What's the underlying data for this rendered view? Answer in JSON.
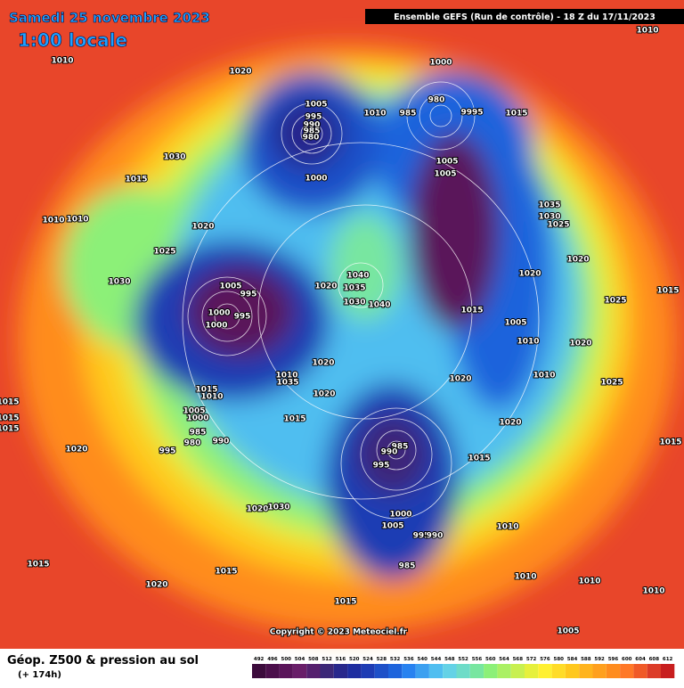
{
  "header": {
    "date": "Samedi 25 novembre 2023",
    "time": "1:00 locale",
    "run": "Ensemble GEFS  (Run de contrôle)  -  18 Z du 17/11/2023"
  },
  "map": {
    "pressure_labels": [
      1010,
      1020,
      1000,
      1010,
      1005,
      995,
      990,
      985,
      980,
      1010,
      985,
      980,
      9995,
      1015,
      1030,
      1015,
      1000,
      1005,
      1005,
      1035,
      1030,
      1025,
      1010,
      1010,
      1020,
      1025,
      1030,
      1040,
      1035,
      1020,
      1030,
      1040,
      1005,
      995,
      1000,
      995,
      1000,
      1015,
      1005,
      1020,
      1020,
      1015,
      1025,
      1010,
      1020,
      1020,
      1010,
      1035,
      1020,
      1010,
      1025,
      1015,
      1010,
      1020,
      1015,
      1015,
      1015,
      1015,
      1005,
      1000,
      1020,
      1015,
      985,
      980,
      990,
      995,
      985,
      990,
      995,
      1015,
      1020,
      1020,
      1030,
      1000,
      1005,
      995,
      990,
      1010,
      985,
      1015,
      1015,
      1020,
      1010,
      1010,
      1010,
      1015,
      1005
    ],
    "copyright": "Copyright © 2023 Meteociel.fr"
  },
  "footer": {
    "title": "Géop. Z500 & pression au sol",
    "lead": "(+ 174h)"
  },
  "legend": {
    "values": [
      492,
      496,
      500,
      504,
      508,
      512,
      516,
      520,
      524,
      528,
      532,
      536,
      540,
      544,
      548,
      552,
      556,
      560,
      564,
      568,
      572,
      576,
      580,
      584,
      588,
      592,
      596,
      600,
      604,
      608,
      612
    ],
    "colors": [
      "#3c0b3c",
      "#4b0f4b",
      "#5a145a",
      "#691e69",
      "#55206e",
      "#3c2878",
      "#28288c",
      "#1e2da0",
      "#1e3cb4",
      "#1e50c8",
      "#1e64dc",
      "#2882f0",
      "#3ca0f0",
      "#50bef0",
      "#64d2e6",
      "#6edcc8",
      "#78e6a0",
      "#8cf078",
      "#aaf064",
      "#c8f050",
      "#e6f03c",
      "#fff032",
      "#ffdc28",
      "#ffc81e",
      "#ffb41e",
      "#ffa01e",
      "#ff8c1e",
      "#ff7828",
      "#f05a28",
      "#dc3c28",
      "#c81e1e"
    ]
  }
}
